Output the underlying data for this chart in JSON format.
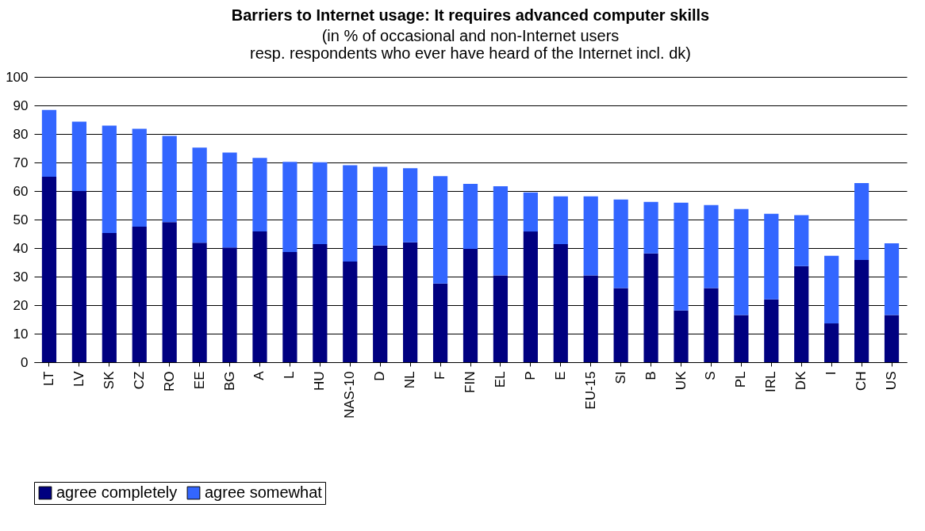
{
  "chart_data": {
    "type": "bar",
    "title": "Barriers to Internet usage: It requires advanced computer skills",
    "subtitle": "(in % of occasional and non-Internet users\nresp. respondents who ever have heard of the Internet incl. dk)",
    "stacked": true,
    "grid": "y",
    "legend": "bottom",
    "categories": [
      "LT",
      "LV",
      "SK",
      "CZ",
      "RO",
      "EE",
      "BG",
      "A",
      "L",
      "HU",
      "NAS-10",
      "D",
      "NL",
      "F",
      "FIN",
      "EL",
      "P",
      "E",
      "EU-15",
      "SI",
      "B",
      "UK",
      "S",
      "PL",
      "IRL",
      "DK",
      "I",
      "CH",
      "US"
    ],
    "series": [
      {
        "name": "agree completely",
        "color": "#000080",
        "values": [
          65,
          60,
          45.3,
          47.5,
          49.1,
          41.9,
          40.2,
          45.8,
          38.6,
          41.4,
          35.3,
          40.9,
          42.0,
          27.6,
          39.7,
          30.4,
          45.8,
          41.4,
          30.4,
          26,
          38.1,
          18.1,
          26,
          16.5,
          22,
          33.7,
          13.6,
          35.8,
          16.5
        ]
      },
      {
        "name": "agree somewhat",
        "color": "#3366ff",
        "values": [
          23.4,
          24.3,
          37.6,
          34.3,
          30.2,
          33.3,
          33.3,
          25.8,
          31.6,
          28.7,
          33.7,
          27.6,
          26.0,
          37.6,
          22.8,
          31.3,
          13.7,
          16.7,
          27.7,
          31.0,
          18.1,
          37.8,
          29.1,
          37.2,
          30.0,
          17.8,
          23.7,
          27.0,
          25.2
        ]
      }
    ],
    "ylim": [
      0,
      100
    ],
    "yticks": [
      0,
      10,
      20,
      30,
      40,
      50,
      60,
      70,
      80,
      90,
      100
    ]
  }
}
